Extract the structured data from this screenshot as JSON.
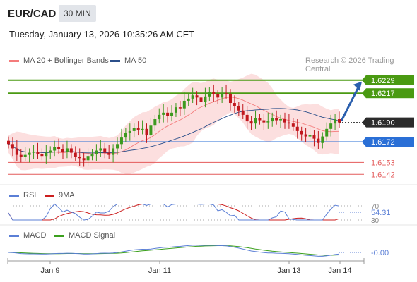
{
  "header": {
    "pair": "EUR/CAD",
    "timeframe": "30 MIN",
    "timestamp": "Tuesday, January 13, 2026 10:35:26 AM CET"
  },
  "legend": {
    "main": [
      {
        "label": "MA 20 + Bollinger Bands",
        "color": "#f47b7b"
      },
      {
        "label": "MA 50",
        "color": "#2b4f8a"
      }
    ],
    "rsi": [
      {
        "label": "RSI",
        "color": "#5b7fd6"
      },
      {
        "label": "9MA",
        "color": "#cc1f1f"
      }
    ],
    "macd": [
      {
        "label": "MACD",
        "color": "#5b7fd6"
      },
      {
        "label": "MACD Signal",
        "color": "#3ca01e"
      }
    ]
  },
  "source": "Research © 2026 Trading Central",
  "colors": {
    "up": "#3d9a1f",
    "down": "#c0171d",
    "band": "#fbd7d7",
    "level_green": "#4a9a12",
    "level_blue": "#2a6fd6",
    "level_red": "#e45a5a",
    "current": "#2b2b2b",
    "arrow": "#2a5fae"
  },
  "chart_data": {
    "type": "line",
    "title": "EUR/CAD 30 MIN",
    "x_ticks": [
      "Jan 9",
      "Jan 11",
      "Jan 13",
      "Jan 14"
    ],
    "ylim": [
      1.6135,
      1.6238
    ],
    "close_series": [
      1.617,
      1.6166,
      1.616,
      1.6158,
      1.616,
      1.6162,
      1.6163,
      1.6161,
      1.6159,
      1.6162,
      1.6164,
      1.6167,
      1.6165,
      1.6163,
      1.6166,
      1.6162,
      1.6158,
      1.6157,
      1.6155,
      1.6159,
      1.6161,
      1.6164,
      1.6166,
      1.6162,
      1.616,
      1.6166,
      1.617,
      1.6176,
      1.618,
      1.6182,
      1.6185,
      1.6183,
      1.6184,
      1.6178,
      1.6187,
      1.6193,
      1.6197,
      1.6199,
      1.6196,
      1.6199,
      1.6204,
      1.6203,
      1.621,
      1.6212,
      1.6215,
      1.6213,
      1.6209,
      1.6214,
      1.6218,
      1.6216,
      1.6213,
      1.6217,
      1.6216,
      1.6208,
      1.6205,
      1.6201,
      1.6197,
      1.6191,
      1.6189,
      1.6194,
      1.6192,
      1.619,
      1.6191,
      1.6194,
      1.6192,
      1.6193,
      1.619,
      1.6189,
      1.6186,
      1.6182,
      1.6179,
      1.6177,
      1.6178,
      1.6175,
      1.6171,
      1.6177,
      1.6184,
      1.6189,
      1.6193,
      1.619
    ],
    "levels": [
      {
        "label": "1.6229",
        "value": 1.6229,
        "kind": "resistance"
      },
      {
        "label": "1.6217",
        "value": 1.6217,
        "kind": "resistance"
      },
      {
        "label": "1.6190",
        "value": 1.619,
        "kind": "current"
      },
      {
        "label": "1.6172",
        "value": 1.6172,
        "kind": "pivot"
      },
      {
        "label": "1.6153",
        "value": 1.6153,
        "kind": "support"
      },
      {
        "label": "1.6142",
        "value": 1.6142,
        "kind": "support"
      }
    ],
    "rsi": {
      "value_label": "54.31",
      "ticks": [
        "70",
        "30"
      ]
    },
    "macd": {
      "value_label": "-0.00"
    }
  }
}
